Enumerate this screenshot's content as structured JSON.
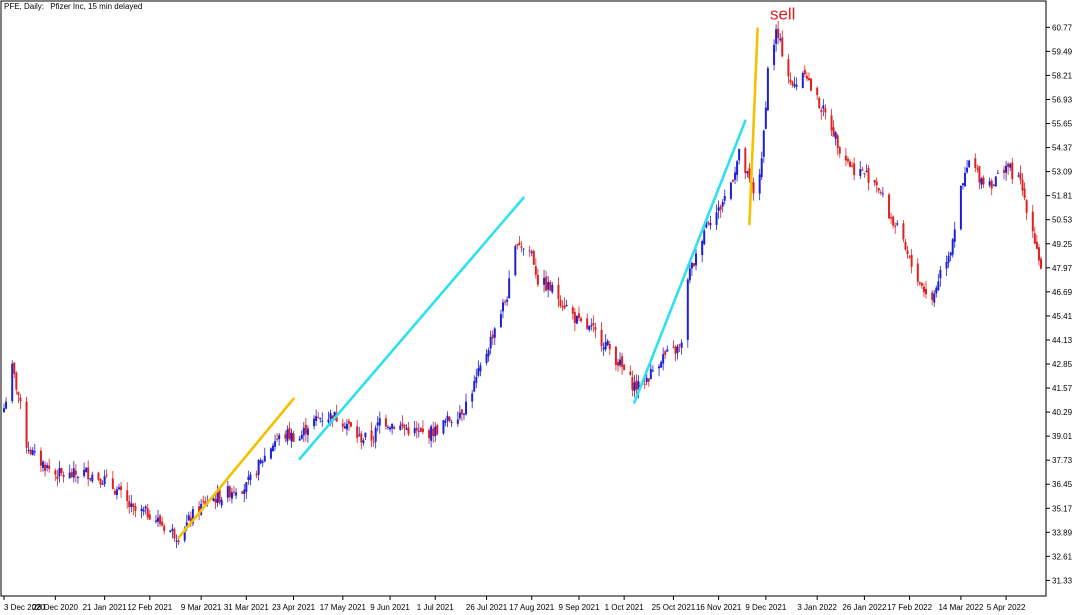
{
  "header": {
    "symbol": "PFE, Daily:",
    "description": "Pfizer Inc, 15 min delayed"
  },
  "colors": {
    "up": "#1f1fd6",
    "down": "#e02020",
    "trend_cyan": "#2ee0f0",
    "trend_yellow": "#f5c000",
    "sell_text": "#e02020"
  },
  "chart_data": {
    "type": "candlestick",
    "title": "",
    "ylim": [
      30.5,
      61.8
    ],
    "x_range": [
      "2020-12-03",
      "2022-04-22"
    ],
    "y_ticks": [
      "60.77",
      "59.49",
      "58.21",
      "56.93",
      "55.65",
      "54.37",
      "53.09",
      "51.81",
      "50.53",
      "49.25",
      "47.97",
      "46.69",
      "45.41",
      "44.13",
      "42.85",
      "41.57",
      "40.29",
      "39.01",
      "37.73",
      "36.45",
      "35.17",
      "33.89",
      "32.61",
      "31.33"
    ],
    "x_ticks": [
      {
        "label": "3 Dec 2020",
        "date": "2020-12-03"
      },
      {
        "label": "28 Dec 2020",
        "date": "2020-12-28"
      },
      {
        "label": "21 Jan 2021",
        "date": "2021-01-21"
      },
      {
        "label": "12 Feb 2021",
        "date": "2021-02-12"
      },
      {
        "label": "9 Mar 2021",
        "date": "2021-03-09"
      },
      {
        "label": "31 Mar 2021",
        "date": "2021-03-31"
      },
      {
        "label": "23 Apr 2021",
        "date": "2021-04-23"
      },
      {
        "label": "17 May 2021",
        "date": "2021-05-17"
      },
      {
        "label": "9 Jun 2021",
        "date": "2021-06-09"
      },
      {
        "label": "1 Jul 2021",
        "date": "2021-07-01"
      },
      {
        "label": "26 Jul 2021",
        "date": "2021-07-26"
      },
      {
        "label": "17 Aug 2021",
        "date": "2021-08-17"
      },
      {
        "label": "9 Sep 2021",
        "date": "2021-09-09"
      },
      {
        "label": "1 Oct 2021",
        "date": "2021-10-01"
      },
      {
        "label": "25 Oct 2021",
        "date": "2021-10-25"
      },
      {
        "label": "16 Nov 2021",
        "date": "2021-11-16"
      },
      {
        "label": "9 Dec 2021",
        "date": "2021-12-09"
      },
      {
        "label": "3 Jan 2022",
        "date": "2022-01-03"
      },
      {
        "label": "26 Jan 2022",
        "date": "2022-01-26"
      },
      {
        "label": "17 Feb 2022",
        "date": "2022-02-17"
      },
      {
        "label": "14 Mar 2022",
        "date": "2022-03-14"
      },
      {
        "label": "5 Apr 2022",
        "date": "2022-04-05"
      }
    ],
    "close_path": [
      [
        "2020-12-03",
        40.5
      ],
      [
        "2020-12-07",
        42.6
      ],
      [
        "2020-12-10",
        41.2
      ],
      [
        "2020-12-14",
        38.6
      ],
      [
        "2020-12-18",
        37.9
      ],
      [
        "2020-12-28",
        37.0
      ],
      [
        "2021-01-04",
        36.9
      ],
      [
        "2021-01-12",
        37.1
      ],
      [
        "2021-01-21",
        36.7
      ],
      [
        "2021-01-28",
        36.0
      ],
      [
        "2021-02-04",
        35.0
      ],
      [
        "2021-02-12",
        34.9
      ],
      [
        "2021-02-19",
        34.2
      ],
      [
        "2021-02-26",
        33.7
      ],
      [
        "2021-03-05",
        34.8
      ],
      [
        "2021-03-12",
        35.6
      ],
      [
        "2021-03-19",
        35.8
      ],
      [
        "2021-03-26",
        36.3
      ],
      [
        "2021-03-31",
        36.3
      ],
      [
        "2021-04-07",
        37.6
      ],
      [
        "2021-04-14",
        38.8
      ],
      [
        "2021-04-20",
        39.1
      ],
      [
        "2021-04-26",
        38.9
      ],
      [
        "2021-04-30",
        39.6
      ],
      [
        "2021-05-06",
        40.0
      ],
      [
        "2021-05-12",
        40.1
      ],
      [
        "2021-05-18",
        39.8
      ],
      [
        "2021-05-25",
        38.9
      ],
      [
        "2021-06-01",
        38.9
      ],
      [
        "2021-06-04",
        39.9
      ],
      [
        "2021-06-09",
        39.7
      ],
      [
        "2021-06-17",
        39.4
      ],
      [
        "2021-06-24",
        39.1
      ],
      [
        "2021-07-01",
        39.3
      ],
      [
        "2021-07-08",
        39.9
      ],
      [
        "2021-07-15",
        40.5
      ],
      [
        "2021-07-21",
        42.0
      ],
      [
        "2021-07-26",
        43.5
      ],
      [
        "2021-07-30",
        44.8
      ],
      [
        "2021-08-05",
        46.5
      ],
      [
        "2021-08-10",
        49.5
      ],
      [
        "2021-08-13",
        49.0
      ],
      [
        "2021-08-17",
        48.8
      ],
      [
        "2021-08-20",
        47.3
      ],
      [
        "2021-08-27",
        46.8
      ],
      [
        "2021-09-03",
        45.9
      ],
      [
        "2021-09-09",
        45.0
      ],
      [
        "2021-09-16",
        44.6
      ],
      [
        "2021-09-23",
        43.8
      ],
      [
        "2021-09-29",
        42.8
      ],
      [
        "2021-10-05",
        41.8
      ],
      [
        "2021-10-08",
        41.6
      ],
      [
        "2021-10-13",
        42.2
      ],
      [
        "2021-10-19",
        43.2
      ],
      [
        "2021-10-25",
        43.5
      ],
      [
        "2021-10-29",
        43.8
      ],
      [
        "2021-11-01",
        47.5
      ],
      [
        "2021-11-05",
        48.5
      ],
      [
        "2021-11-10",
        50.5
      ],
      [
        "2021-11-16",
        51.0
      ],
      [
        "2021-11-22",
        52.5
      ],
      [
        "2021-11-26",
        54.0
      ],
      [
        "2021-11-30",
        52.8
      ],
      [
        "2021-12-03",
        52.0
      ],
      [
        "2021-12-07",
        53.5
      ],
      [
        "2021-12-10",
        58.5
      ],
      [
        "2021-12-14",
        60.5
      ],
      [
        "2021-12-17",
        59.5
      ],
      [
        "2021-12-22",
        57.5
      ],
      [
        "2021-12-28",
        58.6
      ],
      [
        "2021-12-31",
        57.5
      ],
      [
        "2022-01-05",
        56.5
      ],
      [
        "2022-01-10",
        55.5
      ],
      [
        "2022-01-14",
        54.4
      ],
      [
        "2022-01-20",
        53.3
      ],
      [
        "2022-01-26",
        53.0
      ],
      [
        "2022-02-01",
        52.5
      ],
      [
        "2022-02-07",
        50.8
      ],
      [
        "2022-02-11",
        50.0
      ],
      [
        "2022-02-17",
        48.3
      ],
      [
        "2022-02-23",
        47.0
      ],
      [
        "2022-02-28",
        46.2
      ],
      [
        "2022-03-04",
        47.8
      ],
      [
        "2022-03-09",
        49.0
      ],
      [
        "2022-03-14",
        52.0
      ],
      [
        "2022-03-18",
        53.6
      ],
      [
        "2022-03-24",
        52.7
      ],
      [
        "2022-03-30",
        52.5
      ],
      [
        "2022-04-05",
        53.5
      ],
      [
        "2022-04-08",
        53.0
      ],
      [
        "2022-04-12",
        52.5
      ],
      [
        "2022-04-18",
        50.0
      ],
      [
        "2022-04-22",
        48.0
      ]
    ],
    "annotations": {
      "trend_lines": [
        {
          "color": "yellow",
          "from": [
            "2021-02-26",
            33.6
          ],
          "to": [
            "2021-04-23",
            41.0
          ]
        },
        {
          "color": "cyan",
          "from": [
            "2021-04-26",
            37.8
          ],
          "to": [
            "2021-08-13",
            51.7
          ]
        },
        {
          "color": "cyan",
          "from": [
            "2021-10-06",
            40.8
          ],
          "to": [
            "2021-11-29",
            55.8
          ]
        },
        {
          "color": "yellow",
          "from": [
            "2021-12-01",
            50.3
          ],
          "to": [
            "2021-12-05",
            60.7
          ]
        }
      ],
      "labels": [
        {
          "text": "sell",
          "at": [
            "2021-12-11",
            61.2
          ]
        }
      ]
    }
  }
}
